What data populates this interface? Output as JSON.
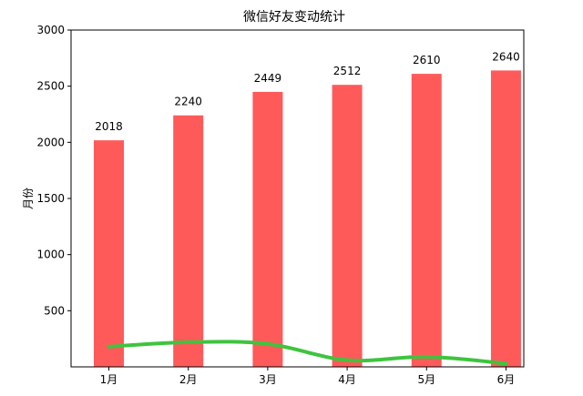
{
  "chart_data": {
    "type": "bar",
    "title": "微信好友变动统计",
    "xlabel": "",
    "ylabel": "月份",
    "categories": [
      "1月",
      "2月",
      "3月",
      "4月",
      "5月",
      "6月"
    ],
    "ylim": [
      0,
      3000
    ],
    "yticks": [
      500,
      1000,
      1500,
      2000,
      2500,
      3000
    ],
    "series": [
      {
        "type": "bar",
        "values": [
          2018,
          2240,
          2449,
          2512,
          2610,
          2640
        ],
        "color": "#ff5a5a",
        "data_labels": [
          "2018",
          "2240",
          "2449",
          "2512",
          "2610",
          "2640"
        ]
      },
      {
        "type": "line",
        "values": [
          180,
          220,
          205,
          60,
          90,
          30
        ],
        "color": "#3ec43e"
      }
    ],
    "grid": false,
    "legend": "none"
  }
}
